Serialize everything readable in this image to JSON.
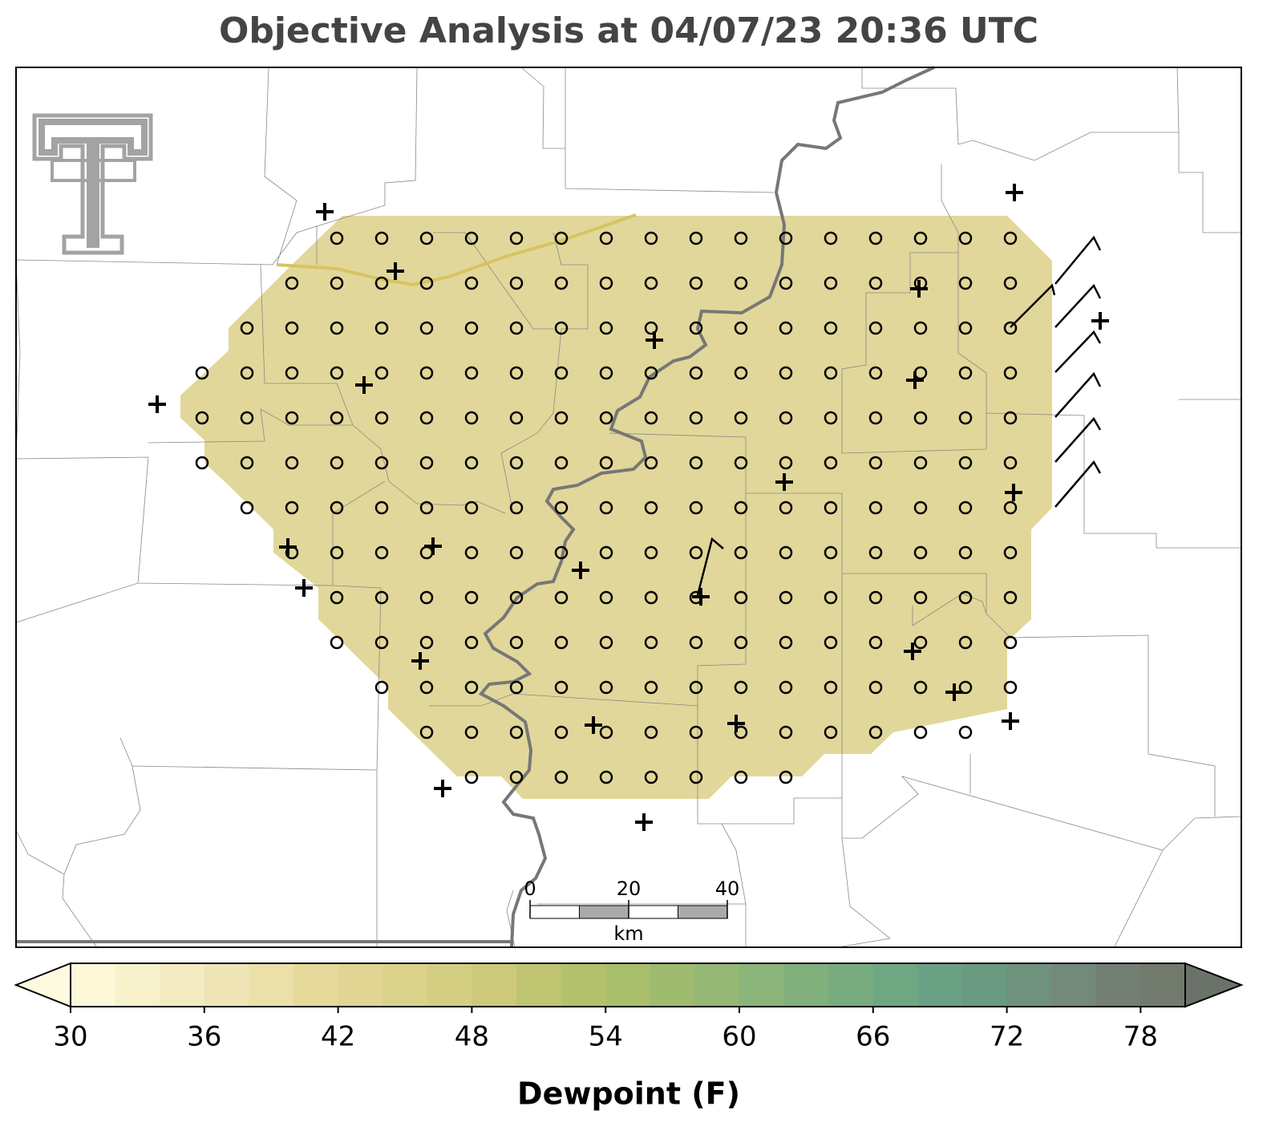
{
  "title": "Objective Analysis at 04/07/23 20:36 UTC",
  "colorbar": {
    "label": "Dewpoint (F)",
    "lim": [
      30,
      80
    ],
    "ticks": [
      30,
      36,
      42,
      48,
      54,
      60,
      66,
      72,
      78
    ],
    "levels": [
      30,
      32,
      34,
      36,
      38,
      40,
      42,
      44,
      46,
      48,
      50,
      52,
      54,
      56,
      58,
      60,
      62,
      64,
      66,
      68,
      70,
      72,
      74,
      76,
      78,
      80
    ],
    "colors": [
      "#fcf8d8",
      "#f7f1cc",
      "#f3ebc2",
      "#efe4b6",
      "#ebdfaa",
      "#e5d99c",
      "#e0d592",
      "#dad28a",
      "#d3ce82",
      "#ccca7a",
      "#bfc571",
      "#b4c16c",
      "#aabf6c",
      "#9fbb70",
      "#95b874",
      "#8bb57a",
      "#81b07d",
      "#78ac80",
      "#6fa783",
      "#6aa184",
      "#6b9a82",
      "#6f927e",
      "#73897a",
      "#737f73",
      "#727a6e"
    ],
    "under_color": "#fdfadf",
    "over_color": "#6b7269"
  },
  "scale_bar": {
    "ticks": [
      0,
      20,
      40
    ],
    "unit": "km"
  }
}
